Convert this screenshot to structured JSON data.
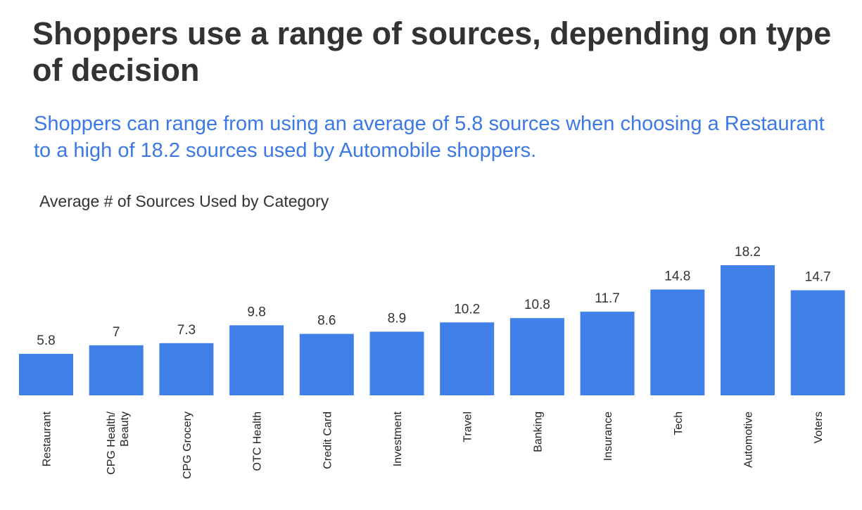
{
  "title": "Shoppers use a range of sources, depending on type of decision",
  "subtitle": "Shoppers can range from using an average of 5.8 sources when choosing a Restaurant to a high of 18.2 sources used by Automobile shoppers.",
  "chart_data": {
    "type": "bar",
    "title": "Average # of Sources Used by Category",
    "xlabel": "",
    "ylabel": "",
    "categories": [
      "Restaurant",
      "CPG Health/ Beauty",
      "CPG Grocery",
      "OTC Health",
      "Credit Card",
      "Investment",
      "Travel",
      "Banking",
      "Insurance",
      "Tech",
      "Automotive",
      "Voters"
    ],
    "values": [
      5.8,
      7,
      7.3,
      9.8,
      8.6,
      8.9,
      10.2,
      10.8,
      11.7,
      14.8,
      18.2,
      14.7
    ],
    "value_labels": [
      "5.8",
      "7",
      "7.3",
      "9.8",
      "8.6",
      "8.9",
      "10.2",
      "10.8",
      "11.7",
      "14.8",
      "18.2",
      "14.7"
    ],
    "ylim": [
      0,
      18.2
    ],
    "grid": false,
    "bar_color": "#4180e9"
  }
}
